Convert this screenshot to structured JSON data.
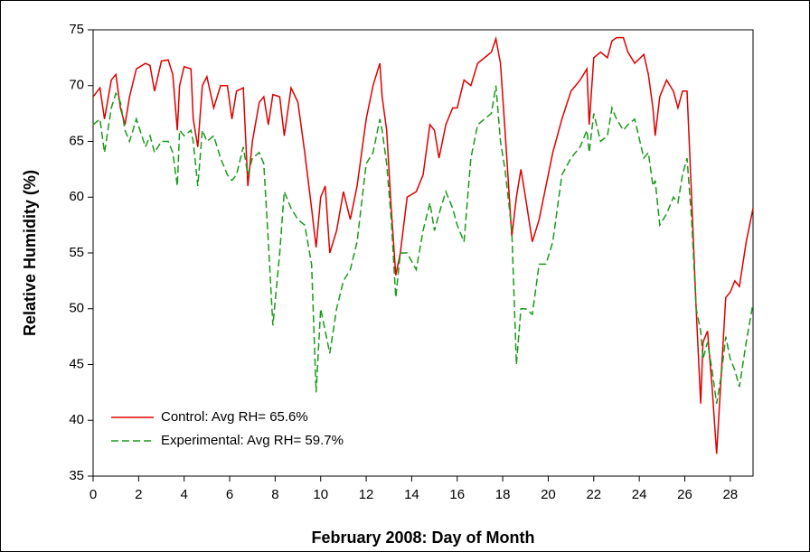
{
  "chart_data": {
    "type": "line",
    "x_label": "February 2008: Day of Month",
    "y_label": "Relative Humidity (%)",
    "x": [
      0,
      0.3,
      0.5,
      0.8,
      1.0,
      1.2,
      1.4,
      1.6,
      1.9,
      2.3,
      2.5,
      2.7,
      3.0,
      3.3,
      3.5,
      3.7,
      3.8,
      4.0,
      4.3,
      4.4,
      4.6,
      4.8,
      5.0,
      5.3,
      5.6,
      5.9,
      6.1,
      6.3,
      6.6,
      6.8,
      7.0,
      7.3,
      7.5,
      7.7,
      7.9,
      8.2,
      8.4,
      8.7,
      9.0,
      9.3,
      9.6,
      9.8,
      10.0,
      10.2,
      10.4,
      10.7,
      11.0,
      11.3,
      11.6,
      12.0,
      12.3,
      12.6,
      12.7,
      12.9,
      13.1,
      13.3,
      13.5,
      13.8,
      14.2,
      14.5,
      14.8,
      15.0,
      15.2,
      15.5,
      15.8,
      16.0,
      16.3,
      16.6,
      16.9,
      17.2,
      17.5,
      17.7,
      17.9,
      18.1,
      18.4,
      18.6,
      18.8,
      19.0,
      19.3,
      19.6,
      19.9,
      20.2,
      20.6,
      21.0,
      21.4,
      21.7,
      21.8,
      22.0,
      22.3,
      22.6,
      22.8,
      23.0,
      23.3,
      23.5,
      23.8,
      24.2,
      24.4,
      24.6,
      24.7,
      24.9,
      25.2,
      25.5,
      25.7,
      25.9,
      26.1,
      26.3,
      26.5,
      26.7,
      26.8,
      27.0,
      27.2,
      27.4,
      27.6,
      27.8,
      28.0,
      28.2,
      28.4,
      28.7,
      29.0
    ],
    "series": [
      {
        "name": "Control: Avg RH= 65.6%",
        "color": "#e00000",
        "dash": false,
        "values": [
          69,
          69.8,
          67,
          70.5,
          71,
          68,
          66.5,
          69,
          71.5,
          72,
          71.8,
          69.5,
          72.2,
          72.3,
          71,
          66,
          70,
          71.7,
          71.5,
          67,
          64.5,
          70,
          70.8,
          68,
          70,
          70,
          67,
          69.5,
          69.8,
          61,
          65,
          68.5,
          69,
          66.5,
          69.2,
          69,
          65.5,
          69.8,
          68.5,
          64,
          59,
          55.5,
          60,
          61,
          55,
          57,
          60.5,
          58,
          61,
          67,
          70,
          72,
          69,
          66,
          59,
          53,
          55,
          60,
          60.5,
          62,
          66.5,
          66,
          63.5,
          66.5,
          68,
          68,
          70.5,
          70,
          72,
          72.5,
          73,
          74.2,
          72,
          66,
          56.5,
          60,
          62.5,
          60,
          56,
          58,
          61,
          64,
          67,
          69.5,
          70.5,
          71.5,
          66.5,
          72.5,
          73,
          72.5,
          74,
          74.3,
          74.3,
          73,
          72,
          72.8,
          71,
          68,
          65.5,
          69,
          70.5,
          69.5,
          68,
          69.5,
          69.5,
          60,
          50,
          41.5,
          47,
          48,
          43,
          37,
          44,
          51,
          51.5,
          52.5,
          52,
          56,
          59
        ]
      },
      {
        "name": "Experimental: Avg RH= 59.7%",
        "color": "#1a9a1a",
        "dash": true,
        "values": [
          66.5,
          67,
          64,
          68,
          69.3,
          68.5,
          66,
          65,
          67,
          64.5,
          65.5,
          64,
          65,
          65,
          64,
          61,
          66,
          65.5,
          66,
          65,
          61,
          66,
          65,
          65.5,
          63.5,
          62,
          61.5,
          62,
          64.5,
          62,
          63.5,
          64,
          63,
          56,
          48.5,
          55,
          60.5,
          59,
          58,
          57.5,
          54,
          42.5,
          50,
          48,
          46,
          50,
          52.5,
          53.5,
          56,
          63,
          64,
          67,
          66,
          63,
          58,
          51,
          55,
          55,
          53.5,
          57,
          59.5,
          57,
          58.5,
          60.5,
          59,
          57.5,
          56,
          63.5,
          66.5,
          67,
          67.5,
          70,
          65,
          62.5,
          57,
          45,
          50,
          50,
          49.5,
          54,
          54,
          56,
          62,
          63.5,
          64.5,
          66,
          64,
          67.5,
          65,
          65.5,
          68,
          67,
          66,
          66.5,
          67,
          63.5,
          64,
          61,
          61.5,
          57.5,
          58.5,
          60,
          59.5,
          62,
          63.5,
          58,
          50,
          48,
          45.5,
          47,
          44.5,
          41.5,
          44,
          47.5,
          45.5,
          44.5,
          43,
          47,
          50.5
        ]
      }
    ],
    "xlim": [
      0,
      29
    ],
    "xticks": [
      0,
      2,
      4,
      6,
      8,
      10,
      12,
      14,
      16,
      18,
      20,
      22,
      24,
      26,
      28
    ],
    "ylim": [
      35,
      75
    ],
    "yticks": [
      35,
      40,
      45,
      50,
      55,
      60,
      65,
      70,
      75
    ],
    "grid": false,
    "legend": "lower left"
  }
}
